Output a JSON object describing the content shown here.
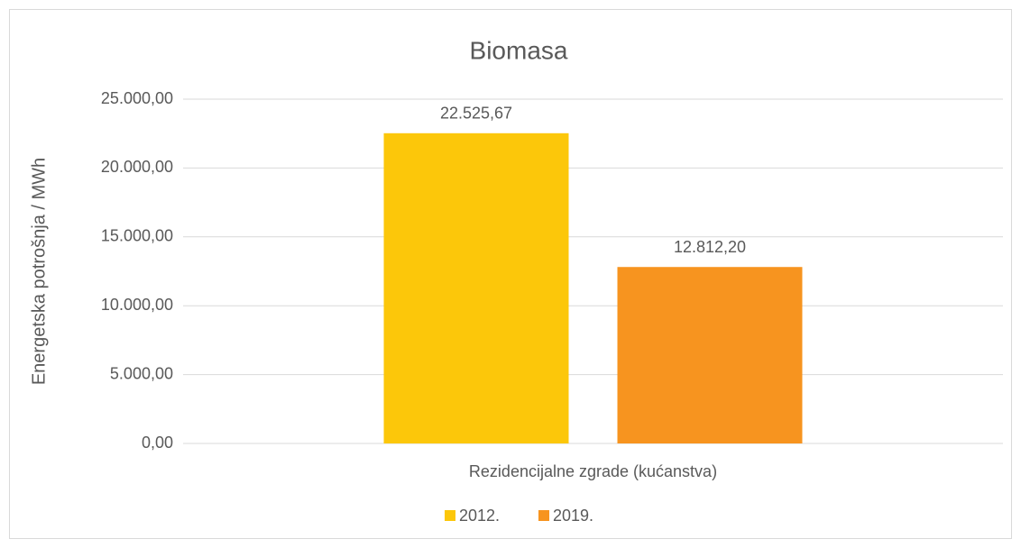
{
  "chart_data": {
    "type": "bar",
    "title": "Biomasa",
    "y_label": "Energetska potrošnja / MWh",
    "categories": [
      "Rezidencijalne zgrade (kućanstva)"
    ],
    "series": [
      {
        "name": "2012.",
        "color": "#fcc70a",
        "values": [
          22525.67
        ],
        "value_labels": [
          "22.525,67"
        ]
      },
      {
        "name": "2019.",
        "color": "#f7941f",
        "values": [
          12812.2
        ],
        "value_labels": [
          "12.812,20"
        ]
      }
    ],
    "ylim": [
      0,
      25000
    ],
    "yticks": [
      {
        "value": 0,
        "label": "0,00"
      },
      {
        "value": 5000,
        "label": "5.000,00"
      },
      {
        "value": 10000,
        "label": "10.000,00"
      },
      {
        "value": 15000,
        "label": "15.000,00"
      },
      {
        "value": 20000,
        "label": "20.000,00"
      },
      {
        "value": 25000,
        "label": "25.000,00"
      }
    ],
    "grid": true,
    "legend": "bottom"
  }
}
